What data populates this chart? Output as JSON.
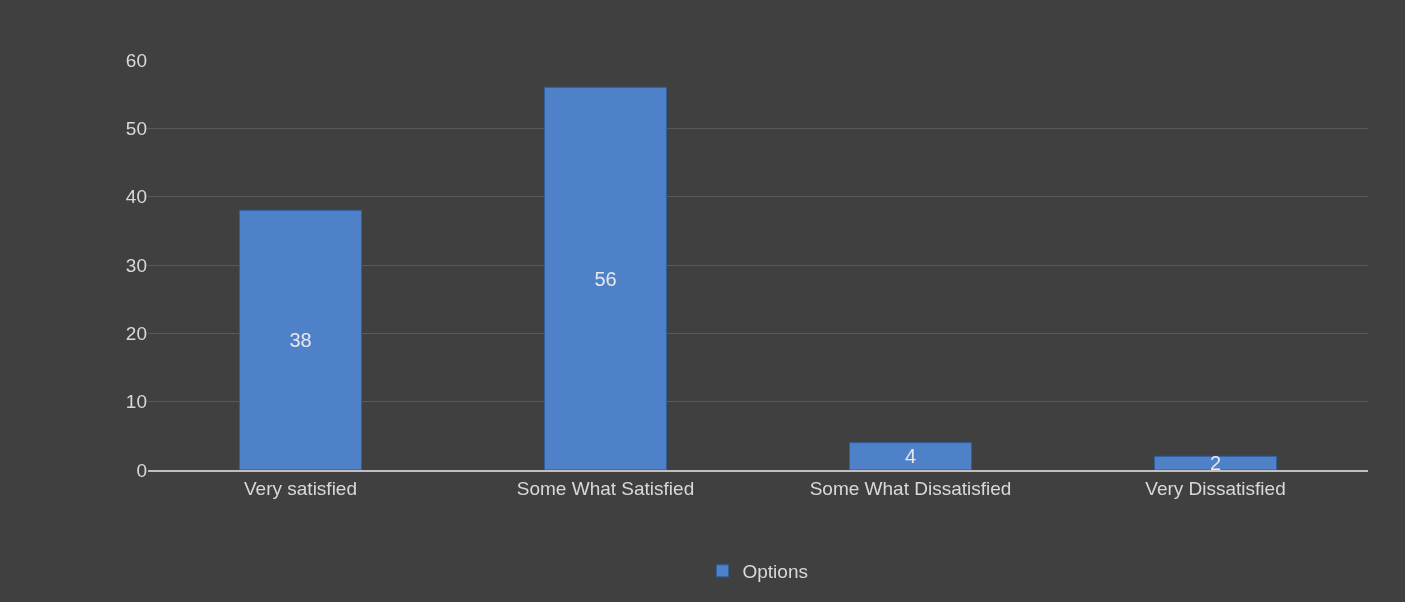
{
  "chart_data": {
    "type": "bar",
    "categories": [
      "Very satisfied",
      "Some What Satisfied",
      "Some What Dissatisfied",
      "Very Dissatisfied"
    ],
    "series": [
      {
        "name": "Options",
        "color": "#4f81c9",
        "values": [
          38,
          56,
          4,
          2
        ]
      }
    ],
    "ylim": [
      0,
      60
    ],
    "yticks": [
      0,
      10,
      20,
      30,
      40,
      50,
      60
    ],
    "grid": "y",
    "legend": "bottom",
    "data_labels": true
  }
}
